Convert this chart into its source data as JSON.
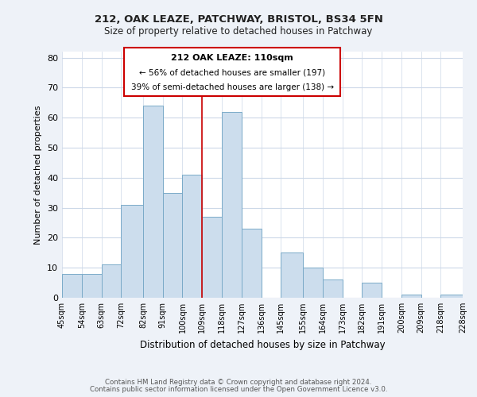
{
  "title1": "212, OAK LEAZE, PATCHWAY, BRISTOL, BS34 5FN",
  "title2": "Size of property relative to detached houses in Patchway",
  "xlabel": "Distribution of detached houses by size in Patchway",
  "ylabel": "Number of detached properties",
  "bar_edges": [
    45,
    54,
    63,
    72,
    82,
    91,
    100,
    109,
    118,
    127,
    136,
    145,
    155,
    164,
    173,
    182,
    191,
    200,
    209,
    218,
    228
  ],
  "bar_heights": [
    8,
    8,
    11,
    31,
    64,
    35,
    41,
    27,
    62,
    23,
    0,
    15,
    10,
    6,
    0,
    5,
    0,
    1,
    0,
    1
  ],
  "bar_color": "#ccdded",
  "bar_edge_color": "#7aaac8",
  "vline_x": 109,
  "vline_color": "#cc0000",
  "annotation_line1": "212 OAK LEAZE: 110sqm",
  "annotation_line2": "← 56% of detached houses are smaller (197)",
  "annotation_line3": "39% of semi-detached houses are larger (138) →",
  "box_edge_color": "#cc0000",
  "ylim": [
    0,
    82
  ],
  "yticks": [
    0,
    10,
    20,
    30,
    40,
    50,
    60,
    70,
    80
  ],
  "tick_labels": [
    "45sqm",
    "54sqm",
    "63sqm",
    "72sqm",
    "82sqm",
    "91sqm",
    "100sqm",
    "109sqm",
    "118sqm",
    "127sqm",
    "136sqm",
    "145sqm",
    "155sqm",
    "164sqm",
    "173sqm",
    "182sqm",
    "191sqm",
    "200sqm",
    "209sqm",
    "218sqm",
    "228sqm"
  ],
  "footer1": "Contains HM Land Registry data © Crown copyright and database right 2024.",
  "footer2": "Contains public sector information licensed under the Open Government Licence v3.0.",
  "bg_color": "#eef2f8",
  "plot_bg_color": "#ffffff",
  "grid_color": "#ccd8e8"
}
